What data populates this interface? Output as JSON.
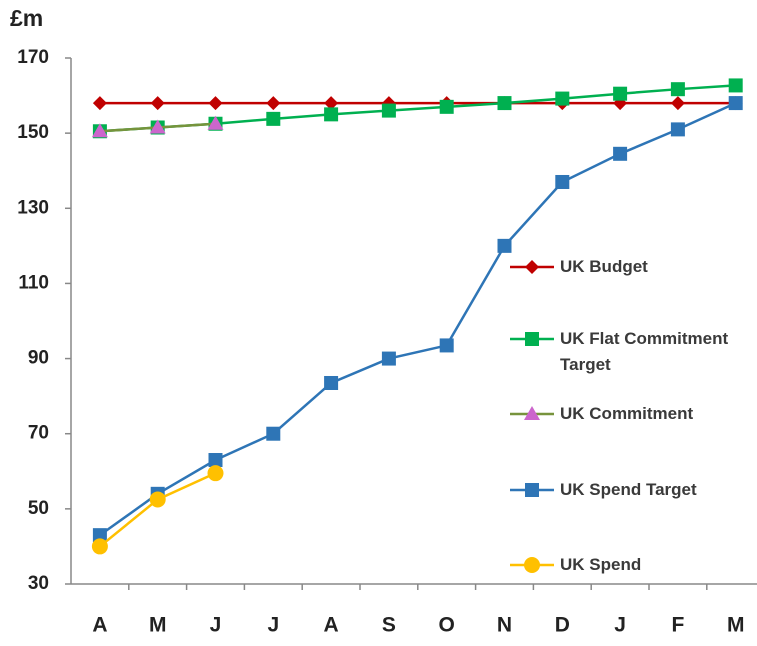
{
  "chart_data": {
    "type": "line",
    "title": "£m",
    "categories": [
      "A",
      "M",
      "J",
      "J",
      "A",
      "S",
      "O",
      "N",
      "D",
      "J",
      "F",
      "M"
    ],
    "ylim": [
      30,
      170
    ],
    "yticks": [
      30,
      50,
      70,
      90,
      110,
      130,
      150,
      170
    ],
    "series": [
      {
        "name": "UK Budget",
        "color": "#c00000",
        "marker": "diamond",
        "values": [
          158,
          158,
          158,
          158,
          158,
          158,
          158,
          158,
          158,
          158,
          158,
          158
        ]
      },
      {
        "name": "UK Flat Commitment Target",
        "color": "#00b050",
        "marker": "square",
        "values": [
          150.5,
          151.5,
          152.5,
          153.8,
          155,
          156,
          157,
          158,
          159.2,
          160.5,
          161.7,
          162.7
        ]
      },
      {
        "name": "UK Commitment",
        "color": "#77933c",
        "marker": "triangle",
        "marker_color": "#cc66cc",
        "values": [
          150.5,
          151.5,
          152.5,
          null,
          null,
          null,
          null,
          null,
          null,
          null,
          null,
          null
        ]
      },
      {
        "name": "UK Spend Target",
        "color": "#2e75b6",
        "marker": "square",
        "values": [
          43,
          54,
          63,
          70,
          83.5,
          90,
          93.5,
          120,
          137,
          144.5,
          151,
          158
        ]
      },
      {
        "name": "UK Spend",
        "color": "#ffc000",
        "marker": "circle",
        "values": [
          40,
          52.5,
          59.5,
          null,
          null,
          null,
          null,
          null,
          null,
          null,
          null,
          null
        ]
      }
    ]
  }
}
